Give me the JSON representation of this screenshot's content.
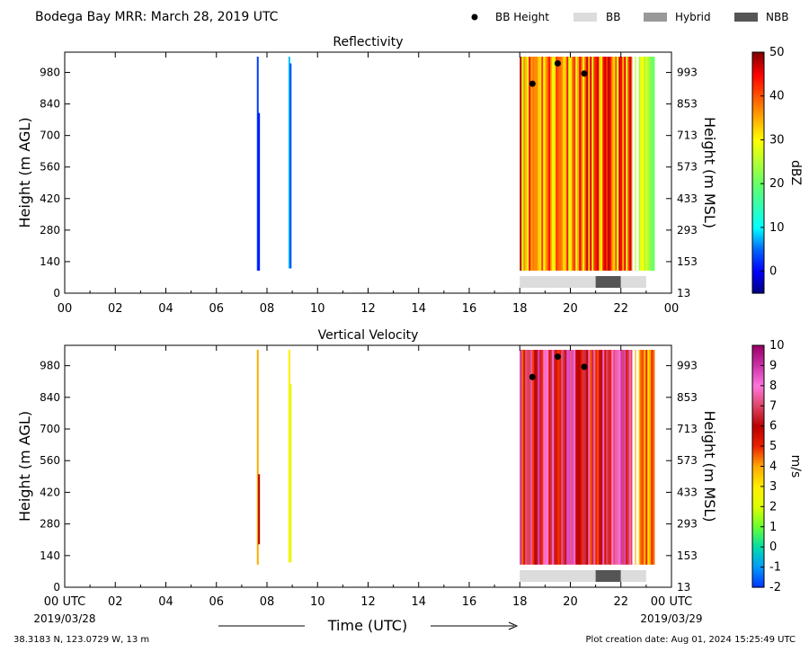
{
  "header": {
    "title": "Bodega Bay MRR:  March 28, 2019 UTC"
  },
  "legend": {
    "placement": "top-right",
    "items": [
      {
        "label": "BB Height",
        "kind": "marker",
        "color": "#000000"
      },
      {
        "label": "BB",
        "kind": "swatch",
        "color": "#dcdcdc"
      },
      {
        "label": "Hybrid",
        "kind": "swatch",
        "color": "#999999"
      },
      {
        "label": "NBB",
        "kind": "swatch",
        "color": "#555555"
      }
    ]
  },
  "footer": {
    "location": "38.3183 N, 123.0729 W, 13 m",
    "creation_date": "Plot creation date: Aug 01, 2024 15:25:49 UTC"
  },
  "chart_data": [
    {
      "type": "heatmap",
      "title": "Reflectivity",
      "xlabel": "",
      "ylabel": "Height (m AGL)",
      "ylabel_right": "Height (m MSL)",
      "xlim": [
        0,
        24
      ],
      "ylim": [
        0,
        1070
      ],
      "x_ticks": [
        "00",
        "02",
        "04",
        "06",
        "08",
        "10",
        "12",
        "14",
        "16",
        "18",
        "20",
        "22",
        "00"
      ],
      "y_ticks": [
        0,
        140,
        280,
        420,
        560,
        700,
        840,
        980
      ],
      "y_ticks_right": [
        13,
        153,
        293,
        433,
        573,
        713,
        853,
        993
      ],
      "colorbar": {
        "label": "dBZ",
        "range": [
          -5,
          50
        ],
        "ticks": [
          "0",
          "10",
          "20",
          "30",
          "40",
          "50"
        ],
        "tick_values": [
          0,
          10,
          20,
          30,
          40,
          50
        ],
        "stops": [
          {
            "v": -5,
            "color": "#00007f"
          },
          {
            "v": 0,
            "color": "#0000ff"
          },
          {
            "v": 5,
            "color": "#0066ff"
          },
          {
            "v": 10,
            "color": "#00ffff"
          },
          {
            "v": 20,
            "color": "#66ff66"
          },
          {
            "v": 30,
            "color": "#ffff00"
          },
          {
            "v": 35,
            "color": "#ffaa00"
          },
          {
            "v": 40,
            "color": "#ff5500"
          },
          {
            "v": 45,
            "color": "#ff0000"
          },
          {
            "v": 50,
            "color": "#7f0000"
          }
        ]
      },
      "sparse_columns": [
        {
          "t": 7.6,
          "value": 3,
          "h_min": 100,
          "h_max": 1050
        },
        {
          "t": 7.65,
          "value": 1,
          "h_min": 100,
          "h_max": 800
        },
        {
          "t": 8.85,
          "value": 8,
          "h_min": 110,
          "h_max": 1050
        },
        {
          "t": 8.9,
          "value": 4,
          "h_min": 110,
          "h_max": 1020
        }
      ],
      "dense_region": {
        "t_start": 18.0,
        "t_end": 23.3,
        "h_min": 100,
        "h_max": 1050,
        "value_range": [
          20,
          48
        ]
      },
      "bb_height_points": [
        {
          "t": 18.5,
          "h": 930
        },
        {
          "t": 19.5,
          "h": 1020
        },
        {
          "t": 20.55,
          "h": 975
        }
      ],
      "bb_class_bar": [
        {
          "class": "BB",
          "t_start": 18.0,
          "t_end": 21.0
        },
        {
          "class": "NBB",
          "t_start": 21.0,
          "t_end": 22.0
        },
        {
          "class": "BB",
          "t_start": 22.0,
          "t_end": 23.0
        }
      ]
    },
    {
      "type": "heatmap",
      "title": "Vertical Velocity",
      "xlabel": "Time (UTC)",
      "ylabel": "Height (m AGL)",
      "ylabel_right": "Height (m MSL)",
      "xlim": [
        0,
        24
      ],
      "ylim": [
        0,
        1070
      ],
      "x_ticks": [
        "00 UTC",
        "02",
        "04",
        "06",
        "08",
        "10",
        "12",
        "14",
        "16",
        "18",
        "20",
        "22",
        "00 UTC"
      ],
      "x_date_start": "2019/03/28",
      "x_date_end": "2019/03/29",
      "y_ticks": [
        0,
        140,
        280,
        420,
        560,
        700,
        840,
        980
      ],
      "y_ticks_right": [
        13,
        153,
        293,
        433,
        573,
        713,
        853,
        993
      ],
      "colorbar": {
        "label": "m/s",
        "range": [
          -2,
          10
        ],
        "ticks": [
          "-2",
          "-1",
          "0",
          "1",
          "2",
          "3",
          "4",
          "5",
          "6",
          "7",
          "8",
          "9",
          "10"
        ],
        "tick_values": [
          -2,
          -1,
          0,
          1,
          2,
          3,
          4,
          5,
          6,
          7,
          8,
          9,
          10
        ],
        "stops": [
          {
            "v": -2,
            "color": "#0033ff"
          },
          {
            "v": -1,
            "color": "#0099ff"
          },
          {
            "v": 0,
            "color": "#00ddaa"
          },
          {
            "v": 1,
            "color": "#66ff33"
          },
          {
            "v": 2,
            "color": "#ddff00"
          },
          {
            "v": 3,
            "color": "#ffee00"
          },
          {
            "v": 4,
            "color": "#ffaa00"
          },
          {
            "v": 5,
            "color": "#ee2200"
          },
          {
            "v": 6,
            "color": "#bb0000"
          },
          {
            "v": 7,
            "color": "#dd4466"
          },
          {
            "v": 8,
            "color": "#ff77dd"
          },
          {
            "v": 9,
            "color": "#cc33aa"
          },
          {
            "v": 10,
            "color": "#990066"
          }
        ]
      },
      "sparse_columns": [
        {
          "t": 7.6,
          "value": 4,
          "h_min": 100,
          "h_max": 1050
        },
        {
          "t": 7.65,
          "value": 6,
          "h_min": 190,
          "h_max": 500
        },
        {
          "t": 8.85,
          "value": 3,
          "h_min": 110,
          "h_max": 1050
        },
        {
          "t": 8.9,
          "value": 2,
          "h_min": 110,
          "h_max": 900
        }
      ],
      "dense_region": {
        "t_start": 18.0,
        "t_end": 23.3,
        "h_min": 100,
        "h_max": 1050,
        "value_range": [
          3,
          9
        ]
      },
      "bb_height_points": [
        {
          "t": 18.5,
          "h": 930
        },
        {
          "t": 19.5,
          "h": 1020
        },
        {
          "t": 20.55,
          "h": 975
        }
      ],
      "bb_class_bar": [
        {
          "class": "BB",
          "t_start": 18.0,
          "t_end": 21.0
        },
        {
          "class": "NBB",
          "t_start": 21.0,
          "t_end": 22.0
        },
        {
          "class": "BB",
          "t_start": 22.0,
          "t_end": 23.0
        }
      ]
    }
  ]
}
